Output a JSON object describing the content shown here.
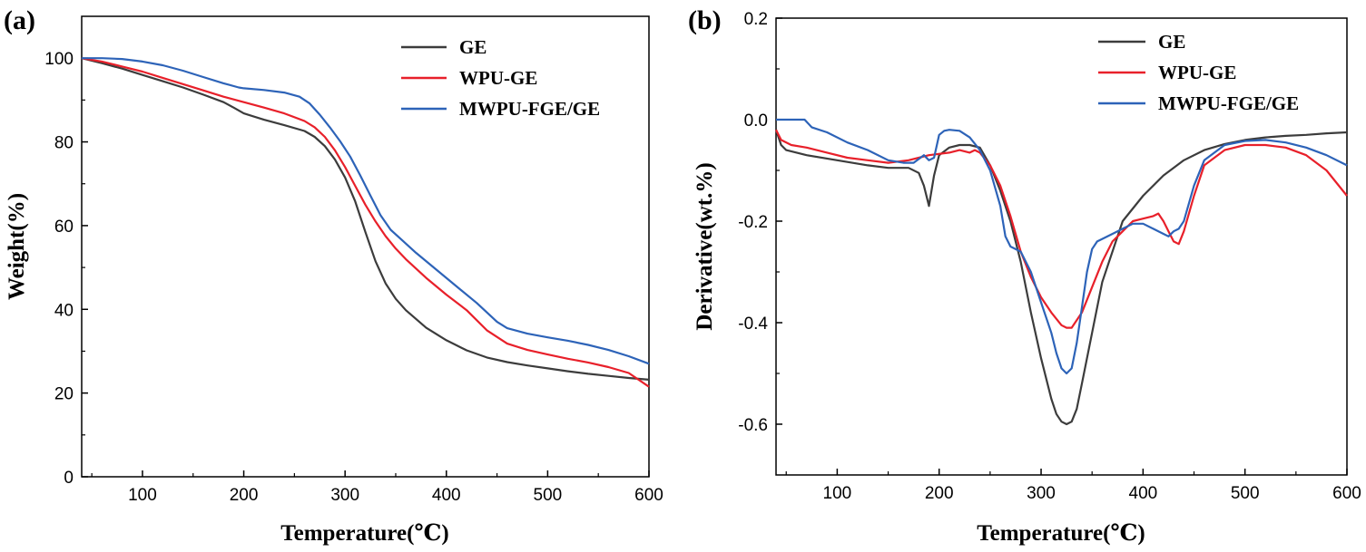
{
  "chart_data": [
    {
      "type": "line",
      "panel_label": "(a)",
      "xlabel": "Temperature(℃)",
      "ylabel": "Weight(%)",
      "xlim": [
        40,
        600
      ],
      "ylim": [
        0,
        110
      ],
      "xticks": [
        100,
        200,
        300,
        400,
        500,
        600
      ],
      "yticks": [
        0,
        20,
        40,
        60,
        80,
        100
      ],
      "legend_position": "top-right",
      "series": [
        {
          "name": "GE",
          "color": "#3c3c3c",
          "x": [
            40,
            60,
            80,
            100,
            120,
            140,
            160,
            180,
            190,
            200,
            220,
            240,
            260,
            270,
            280,
            290,
            300,
            310,
            320,
            330,
            340,
            350,
            360,
            380,
            400,
            420,
            440,
            460,
            480,
            500,
            520,
            540,
            560,
            580,
            600
          ],
          "y": [
            100,
            98.8,
            97.5,
            96,
            94.5,
            93,
            91.3,
            89.5,
            88.2,
            86.8,
            85.3,
            84,
            82.6,
            81.2,
            79,
            75.8,
            71.5,
            65.8,
            58.5,
            51.5,
            46.2,
            42.5,
            39.8,
            35.6,
            32.6,
            30.2,
            28.5,
            27.4,
            26.6,
            25.9,
            25.2,
            24.6,
            24.1,
            23.6,
            23.2
          ]
        },
        {
          "name": "WPU-GE",
          "color": "#e8202a",
          "x": [
            40,
            60,
            80,
            100,
            120,
            140,
            160,
            180,
            200,
            220,
            240,
            260,
            270,
            280,
            290,
            300,
            310,
            320,
            330,
            340,
            350,
            360,
            380,
            400,
            420,
            440,
            460,
            480,
            500,
            520,
            540,
            560,
            580,
            600
          ],
          "y": [
            100,
            99.2,
            98,
            96.8,
            95.3,
            93.8,
            92.3,
            90.8,
            89.5,
            88.2,
            86.8,
            85,
            83.5,
            81.2,
            78,
            74,
            69.5,
            65,
            61,
            57.5,
            54.5,
            52,
            47.5,
            43.5,
            39.8,
            35,
            31.8,
            30.3,
            29.2,
            28.2,
            27.3,
            26.2,
            24.8,
            21.5
          ]
        },
        {
          "name": "MWPU-FGE/GE",
          "color": "#2d63b8",
          "x": [
            40,
            60,
            80,
            100,
            120,
            140,
            160,
            180,
            195,
            200,
            220,
            240,
            255,
            265,
            275,
            285,
            295,
            305,
            315,
            325,
            335,
            345,
            355,
            370,
            390,
            410,
            430,
            450,
            460,
            480,
            500,
            520,
            540,
            560,
            580,
            600
          ],
          "y": [
            100,
            100,
            99.8,
            99.2,
            98.3,
            97,
            95.5,
            94,
            93,
            92.8,
            92.4,
            91.8,
            90.8,
            89.2,
            86.5,
            83.5,
            80.2,
            76.5,
            72,
            67.2,
            62.5,
            59,
            56.8,
            53.5,
            49.5,
            45.5,
            41.5,
            37,
            35.5,
            34.2,
            33.3,
            32.5,
            31.5,
            30.3,
            28.8,
            27
          ]
        }
      ],
      "legend": [
        "GE",
        "WPU-GE",
        "MWPU-FGE/GE"
      ]
    },
    {
      "type": "line",
      "panel_label": "(b)",
      "xlabel": "Temperature(℃)",
      "ylabel": "Derivative(wt.%)",
      "xlim": [
        40,
        600
      ],
      "ylim": [
        -0.7,
        0.2
      ],
      "xticks": [
        100,
        200,
        300,
        400,
        500,
        600
      ],
      "yticks": [
        -0.6,
        -0.4,
        -0.2,
        0.0,
        0.2
      ],
      "ytick_labels": [
        "-0.6",
        "-0.4",
        "-0.2",
        "0.0",
        "0.2"
      ],
      "legend_position": "top-right",
      "series": [
        {
          "name": "GE",
          "color": "#3c3c3c",
          "x": [
            40,
            45,
            50,
            70,
            100,
            130,
            150,
            170,
            180,
            185,
            190,
            195,
            200,
            210,
            220,
            230,
            240,
            250,
            260,
            270,
            280,
            290,
            300,
            310,
            315,
            320,
            325,
            330,
            335,
            340,
            350,
            360,
            380,
            400,
            420,
            440,
            460,
            480,
            500,
            520,
            540,
            560,
            580,
            600
          ],
          "y": [
            -0.02,
            -0.05,
            -0.06,
            -0.07,
            -0.08,
            -0.09,
            -0.095,
            -0.095,
            -0.105,
            -0.13,
            -0.17,
            -0.11,
            -0.07,
            -0.055,
            -0.05,
            -0.05,
            -0.055,
            -0.09,
            -0.14,
            -0.2,
            -0.28,
            -0.38,
            -0.47,
            -0.55,
            -0.58,
            -0.595,
            -0.6,
            -0.595,
            -0.57,
            -0.52,
            -0.42,
            -0.32,
            -0.2,
            -0.15,
            -0.11,
            -0.08,
            -0.06,
            -0.048,
            -0.04,
            -0.035,
            -0.032,
            -0.03,
            -0.027,
            -0.025
          ]
        },
        {
          "name": "WPU-GE",
          "color": "#e8202a",
          "x": [
            40,
            45,
            55,
            70,
            90,
            110,
            130,
            150,
            170,
            190,
            210,
            220,
            230,
            235,
            240,
            250,
            260,
            270,
            280,
            290,
            300,
            310,
            320,
            325,
            330,
            340,
            350,
            360,
            370,
            380,
            390,
            400,
            410,
            415,
            420,
            425,
            430,
            435,
            440,
            450,
            460,
            480,
            500,
            520,
            540,
            560,
            580,
            600
          ],
          "y": [
            -0.02,
            -0.04,
            -0.05,
            -0.055,
            -0.065,
            -0.075,
            -0.08,
            -0.085,
            -0.08,
            -0.07,
            -0.065,
            -0.06,
            -0.065,
            -0.06,
            -0.065,
            -0.09,
            -0.13,
            -0.19,
            -0.26,
            -0.31,
            -0.35,
            -0.38,
            -0.405,
            -0.41,
            -0.41,
            -0.38,
            -0.33,
            -0.28,
            -0.24,
            -0.22,
            -0.2,
            -0.195,
            -0.19,
            -0.185,
            -0.2,
            -0.22,
            -0.24,
            -0.245,
            -0.22,
            -0.15,
            -0.09,
            -0.06,
            -0.05,
            -0.05,
            -0.055,
            -0.07,
            -0.1,
            -0.15
          ]
        },
        {
          "name": "MWPU-FGE/GE",
          "color": "#2d63b8",
          "x": [
            40,
            60,
            68,
            75,
            90,
            110,
            130,
            150,
            165,
            175,
            185,
            190,
            195,
            200,
            205,
            210,
            220,
            230,
            240,
            250,
            260,
            265,
            270,
            280,
            290,
            300,
            310,
            315,
            320,
            325,
            330,
            335,
            340,
            345,
            350,
            355,
            360,
            370,
            380,
            390,
            400,
            410,
            420,
            425,
            430,
            435,
            440,
            450,
            460,
            480,
            500,
            520,
            540,
            560,
            580,
            600
          ],
          "y": [
            0,
            0,
            0,
            -0.015,
            -0.025,
            -0.045,
            -0.06,
            -0.08,
            -0.085,
            -0.085,
            -0.07,
            -0.08,
            -0.075,
            -0.03,
            -0.022,
            -0.02,
            -0.022,
            -0.035,
            -0.06,
            -0.1,
            -0.17,
            -0.23,
            -0.25,
            -0.26,
            -0.3,
            -0.36,
            -0.42,
            -0.46,
            -0.49,
            -0.5,
            -0.49,
            -0.44,
            -0.37,
            -0.3,
            -0.255,
            -0.24,
            -0.235,
            -0.225,
            -0.215,
            -0.205,
            -0.205,
            -0.215,
            -0.225,
            -0.23,
            -0.22,
            -0.215,
            -0.2,
            -0.13,
            -0.08,
            -0.05,
            -0.042,
            -0.04,
            -0.045,
            -0.055,
            -0.07,
            -0.09
          ]
        }
      ],
      "legend": [
        "GE",
        "WPU-GE",
        "MWPU-FGE/GE"
      ]
    }
  ]
}
